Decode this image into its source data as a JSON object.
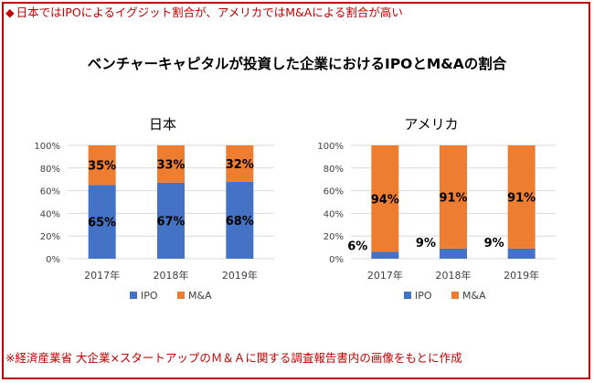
{
  "heading": {
    "marker": "◆",
    "text": "日本ではIPOによるイグジット割合が、アメリカではM&Aによる割合が高い"
  },
  "main_title": "ベンチャーキャピタルが投資した企業におけるIPOとM&Aの割合",
  "footer": "※経済産業省 大企業×スタートアップのＭ＆Ａに関する調査報告書内の画像をもとに作成",
  "colors": {
    "ipo": "#4472c4",
    "ma": "#ed7d31",
    "frame": "#c00000",
    "grid": "#d9d9d9"
  },
  "chart_data": [
    {
      "type": "bar",
      "stacked": true,
      "percent": true,
      "title": "日本",
      "categories": [
        "2017年",
        "2018年",
        "2019年"
      ],
      "yticks": [
        "0%",
        "20%",
        "40%",
        "60%",
        "80%",
        "100%"
      ],
      "ylim": [
        0,
        100
      ],
      "series": [
        {
          "name": "IPO",
          "values": [
            65,
            67,
            68
          ],
          "labels": [
            "65%",
            "67%",
            "68%"
          ]
        },
        {
          "name": "M&A",
          "values": [
            35,
            33,
            32
          ],
          "labels": [
            "35%",
            "33%",
            "32%"
          ]
        }
      ],
      "legend": [
        "IPO",
        "M&A"
      ],
      "legend_position": "bottom"
    },
    {
      "type": "bar",
      "stacked": true,
      "percent": true,
      "title": "アメリカ",
      "categories": [
        "2017年",
        "2018年",
        "2019年"
      ],
      "yticks": [
        "0%",
        "20%",
        "40%",
        "60%",
        "80%",
        "100%"
      ],
      "ylim": [
        0,
        100
      ],
      "series": [
        {
          "name": "IPO",
          "values": [
            6,
            9,
            9
          ],
          "labels": [
            "6%",
            "9%",
            "9%"
          ]
        },
        {
          "name": "M&A",
          "values": [
            94,
            91,
            91
          ],
          "labels": [
            "94%",
            "91%",
            "91%"
          ]
        }
      ],
      "legend": [
        "IPO",
        "M&A"
      ],
      "legend_position": "bottom"
    }
  ]
}
